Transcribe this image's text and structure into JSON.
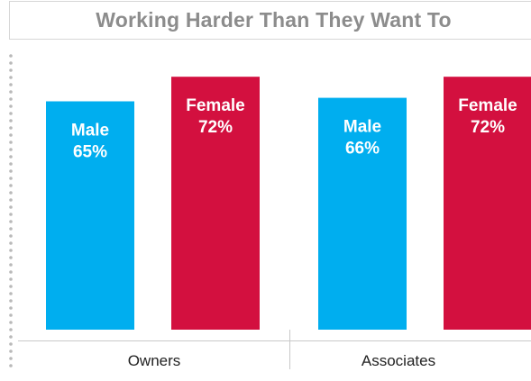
{
  "colors": {
    "male": "#00aeef",
    "female": "#d3103f",
    "title": "#8c8c8c",
    "axis": "#c8c8c8"
  },
  "chart_data": {
    "type": "bar",
    "title": "Working Harder Than They Want To",
    "categories": [
      "Owners",
      "Associates"
    ],
    "series": [
      {
        "name": "Male",
        "values": [
          65,
          66
        ],
        "labels": [
          "65%",
          "66%"
        ]
      },
      {
        "name": "Female",
        "values": [
          72,
          72
        ],
        "labels": [
          "72%",
          "72%"
        ]
      }
    ],
    "ylim": [
      0,
      100
    ],
    "grid": false
  }
}
